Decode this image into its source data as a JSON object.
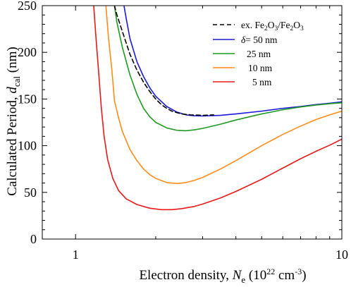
{
  "chart_data": {
    "type": "line",
    "x_scale": "log",
    "y_scale": "linear",
    "xlim": [
      0.75,
      10
    ],
    "ylim": [
      0,
      250
    ],
    "x_ticks": [
      {
        "value": 1,
        "label": "1"
      },
      {
        "value": 10,
        "label": "10"
      }
    ],
    "x_minor_ticks": [
      2,
      3,
      4,
      5,
      6,
      7,
      8,
      9
    ],
    "y_ticks": [
      0,
      50,
      100,
      150,
      200,
      250
    ],
    "y_minor_step": 10,
    "xlabel": {
      "prefix": "Electron density, ",
      "symbol": "N",
      "sub": "e",
      "unit_open": " (10",
      "unit_exp": "22",
      "unit_mid": " cm",
      "unit_exp2": "-3",
      "unit_close": ")"
    },
    "ylabel": {
      "prefix": "Calculated Period, ",
      "symbol": "d",
      "sub": "cal",
      "unit": " (nm)"
    },
    "legend": {
      "position": "top-right",
      "exp_label": {
        "t1": "ex. Fe",
        "s1": "2",
        "t2": "O",
        "s2": "3",
        "t3": "/Fe",
        "s3": "2",
        "t4": "O",
        "s4": "3"
      },
      "delta_symbol": "δ",
      "delta_eq": "= 50 nm",
      "series_labels": [
        "25 nm",
        "10 nm",
        "5 nm"
      ]
    },
    "series": [
      {
        "name": "ex. Fe2O3/Fe2O3",
        "color": "#000000",
        "dash": true,
        "points": [
          [
            1.4,
            250
          ],
          [
            1.43,
            240
          ],
          [
            1.5,
            222
          ],
          [
            1.6,
            198
          ],
          [
            1.7,
            181
          ],
          [
            1.8,
            168
          ],
          [
            1.9,
            158
          ],
          [
            2.0,
            150
          ],
          [
            2.1,
            144
          ],
          [
            2.2,
            140
          ],
          [
            2.3,
            137
          ],
          [
            2.5,
            134
          ],
          [
            2.7,
            133
          ],
          [
            3.0,
            132.5
          ],
          [
            3.3,
            133
          ]
        ]
      },
      {
        "name": "δ = 50 nm",
        "color": "#1a1ad6",
        "dash": false,
        "points": [
          [
            1.52,
            250
          ],
          [
            1.55,
            236
          ],
          [
            1.6,
            215
          ],
          [
            1.7,
            190
          ],
          [
            1.8,
            174
          ],
          [
            1.9,
            162
          ],
          [
            2.0,
            153
          ],
          [
            2.2,
            142
          ],
          [
            2.4,
            136
          ],
          [
            2.6,
            133
          ],
          [
            2.8,
            132
          ],
          [
            3.0,
            131.8
          ],
          [
            3.5,
            132.5
          ],
          [
            4.0,
            134
          ],
          [
            5.0,
            137
          ],
          [
            6.0,
            140
          ],
          [
            7.0,
            142
          ],
          [
            8.0,
            144
          ],
          [
            9.0,
            145.5
          ],
          [
            10.0,
            147
          ]
        ]
      },
      {
        "name": "25 nm",
        "color": "#1f9a1f",
        "dash": false,
        "points": [
          [
            1.4,
            250
          ],
          [
            1.43,
            232
          ],
          [
            1.5,
            205
          ],
          [
            1.6,
            176
          ],
          [
            1.7,
            155
          ],
          [
            1.8,
            140
          ],
          [
            1.9,
            131
          ],
          [
            2.0,
            125
          ],
          [
            2.2,
            119
          ],
          [
            2.4,
            116.5
          ],
          [
            2.6,
            116
          ],
          [
            2.8,
            117
          ],
          [
            3.0,
            118.5
          ],
          [
            3.5,
            123
          ],
          [
            4.0,
            127.5
          ],
          [
            5.0,
            134
          ],
          [
            6.0,
            138.5
          ],
          [
            7.0,
            141.5
          ],
          [
            8.0,
            143.5
          ],
          [
            9.0,
            145
          ],
          [
            10.0,
            146
          ]
        ]
      },
      {
        "name": "10 nm",
        "color": "#ff8c1a",
        "dash": false,
        "points": [
          [
            1.3,
            250
          ],
          [
            1.33,
            215
          ],
          [
            1.37,
            180
          ],
          [
            1.4,
            148
          ],
          [
            1.45,
            130
          ],
          [
            1.5,
            115
          ],
          [
            1.6,
            96
          ],
          [
            1.7,
            84
          ],
          [
            1.8,
            75
          ],
          [
            1.9,
            69
          ],
          [
            2.0,
            65
          ],
          [
            2.2,
            60.5
          ],
          [
            2.4,
            59.5
          ],
          [
            2.6,
            60.5
          ],
          [
            2.8,
            63
          ],
          [
            3.0,
            66
          ],
          [
            3.5,
            75
          ],
          [
            4.0,
            84
          ],
          [
            5.0,
            100
          ],
          [
            6.0,
            112
          ],
          [
            7.0,
            121
          ],
          [
            8.0,
            128
          ],
          [
            9.0,
            133
          ],
          [
            10.0,
            137
          ]
        ]
      },
      {
        "name": "5 nm",
        "color": "#e81818",
        "dash": false,
        "points": [
          [
            1.17,
            250
          ],
          [
            1.19,
            220
          ],
          [
            1.22,
            180
          ],
          [
            1.25,
            140
          ],
          [
            1.28,
            110
          ],
          [
            1.32,
            85
          ],
          [
            1.38,
            65
          ],
          [
            1.45,
            52
          ],
          [
            1.55,
            43
          ],
          [
            1.7,
            37
          ],
          [
            1.9,
            33
          ],
          [
            2.1,
            31.5
          ],
          [
            2.3,
            31.5
          ],
          [
            2.5,
            32.5
          ],
          [
            2.8,
            35
          ],
          [
            3.0,
            37.5
          ],
          [
            3.5,
            44
          ],
          [
            4.0,
            51
          ],
          [
            5.0,
            64
          ],
          [
            6.0,
            76
          ],
          [
            7.0,
            86
          ],
          [
            8.0,
            94
          ],
          [
            9.0,
            100.5
          ],
          [
            10.0,
            107
          ]
        ]
      }
    ]
  }
}
